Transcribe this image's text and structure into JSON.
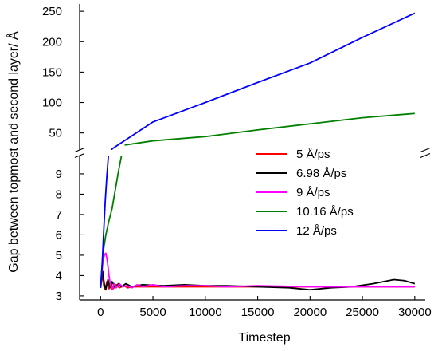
{
  "chart_data": {
    "type": "line",
    "xlabel": "Timestep",
    "ylabel": "Gap between topmost and second layer/ Å",
    "xlim": [
      -2000,
      31000
    ],
    "x_ticks": [
      0,
      5000,
      10000,
      15000,
      20000,
      25000,
      30000
    ],
    "y_axis_broken": true,
    "y_lower": {
      "ylim": [
        2.8,
        9.9
      ],
      "ticks": [
        3,
        4,
        5,
        6,
        7,
        8,
        9
      ]
    },
    "y_upper": {
      "ylim": [
        22,
        262
      ],
      "ticks": [
        50,
        100,
        150,
        200,
        250
      ]
    },
    "legend_position": "right-center",
    "series": [
      {
        "name": "5 Å/ps",
        "color": "#ff0000",
        "x": [
          0,
          150,
          300,
          450,
          600,
          800,
          1000,
          1200,
          1500,
          1800,
          2200,
          2600,
          3000,
          4000,
          5000,
          7000,
          10000,
          15000,
          20000,
          25000,
          30000
        ],
        "y": [
          3.4,
          4.2,
          3.5,
          3.3,
          3.7,
          3.35,
          3.6,
          3.35,
          3.55,
          3.4,
          3.5,
          3.4,
          3.45,
          3.45,
          3.45,
          3.45,
          3.45,
          3.45,
          3.45,
          3.45,
          3.45
        ]
      },
      {
        "name": "6.98 Å/ps",
        "color": "#000000",
        "x": [
          0,
          200,
          350,
          500,
          700,
          900,
          1100,
          1400,
          1700,
          2000,
          2400,
          3000,
          4000,
          6000,
          8000,
          10000,
          12000,
          15000,
          18000,
          20000,
          22000,
          24000,
          26000,
          28000,
          29000,
          30000
        ],
        "y": [
          3.4,
          4.2,
          3.6,
          3.3,
          3.8,
          3.4,
          3.7,
          3.4,
          3.6,
          3.45,
          3.6,
          3.45,
          3.55,
          3.5,
          3.55,
          3.5,
          3.5,
          3.45,
          3.4,
          3.3,
          3.4,
          3.45,
          3.6,
          3.8,
          3.75,
          3.6
        ]
      },
      {
        "name": "9 Å/ps",
        "color": "#ff00ff",
        "x": [
          0,
          100,
          200,
          350,
          500,
          650,
          800,
          950,
          1100,
          1300,
          1500,
          1800,
          2100,
          2500,
          3000,
          3500,
          4000,
          5000,
          6000,
          8000,
          10000,
          12000,
          15000,
          20000,
          25000,
          30000
        ],
        "y": [
          3.4,
          4.0,
          4.6,
          5.0,
          5.1,
          4.7,
          4.0,
          3.5,
          3.3,
          3.6,
          3.4,
          3.6,
          3.45,
          3.5,
          3.4,
          3.55,
          3.45,
          3.55,
          3.45,
          3.5,
          3.5,
          3.45,
          3.5,
          3.45,
          3.45,
          3.45
        ]
      },
      {
        "name": "10.16 Å/ps",
        "color": "#008000",
        "x": [
          0,
          200,
          500,
          800,
          1100,
          1400,
          1700,
          2000,
          2300,
          5000,
          10000,
          15000,
          20000,
          25000,
          30000
        ],
        "y": [
          3.4,
          5.0,
          6.0,
          6.7,
          7.3,
          8.2,
          9.1,
          9.9,
          30,
          37,
          44,
          55,
          65,
          75,
          82
        ]
      },
      {
        "name": "12 Å/ps",
        "color": "#0000ff",
        "x": [
          0,
          150,
          300,
          450,
          600,
          750,
          1000,
          1200,
          5000,
          10000,
          15000,
          20000,
          25000,
          30000
        ],
        "y": [
          3.4,
          4.5,
          6.2,
          7.7,
          8.9,
          9.9,
          22,
          25,
          68,
          100,
          133,
          165,
          207,
          247
        ]
      }
    ]
  }
}
